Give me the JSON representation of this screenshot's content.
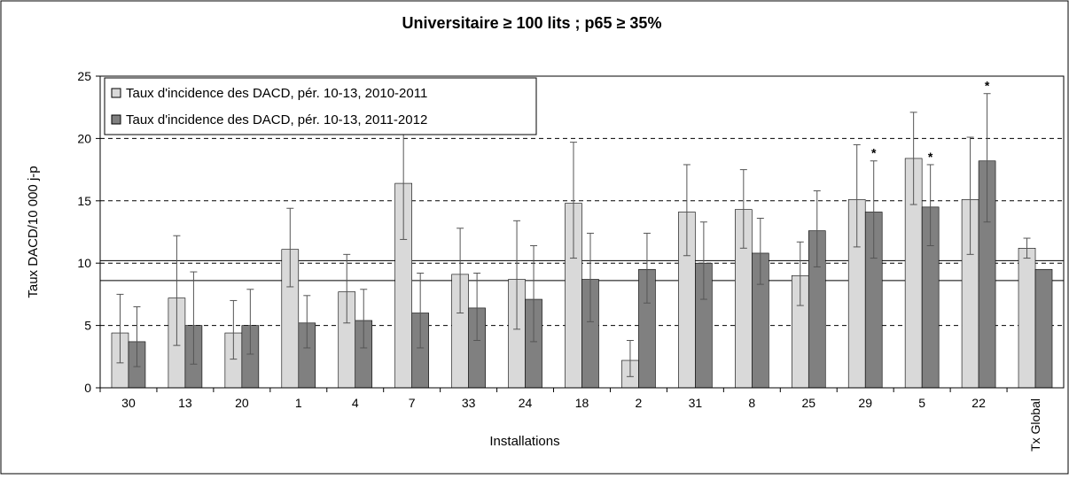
{
  "chart_data": {
    "type": "bar",
    "title": "Universitaire ≥ 100 lits ; p65 ≥ 35%",
    "y_label": "Taux DACD/10 000 j-p",
    "x_label": "Installations",
    "categories": [
      "30",
      "13",
      "20",
      "1",
      "4",
      "7",
      "33",
      "24",
      "18",
      "2",
      "31",
      "8",
      "25",
      "29",
      "5",
      "22",
      "Tx Global"
    ],
    "series": [
      {
        "name": "Taux d'incidence des DACD, pér. 10-13, 2010-2011",
        "color": "#d9d9d9",
        "values": [
          4.4,
          7.2,
          4.4,
          11.1,
          7.7,
          16.4,
          9.1,
          8.7,
          14.8,
          2.2,
          14.1,
          14.3,
          9.0,
          15.1,
          18.4,
          15.1,
          11.2
        ],
        "lower": [
          2.0,
          3.4,
          2.3,
          8.1,
          5.2,
          11.9,
          6.0,
          4.7,
          10.4,
          0.9,
          10.6,
          11.2,
          6.6,
          11.3,
          14.7,
          10.7,
          10.4
        ],
        "upper": [
          7.5,
          12.2,
          7.0,
          14.4,
          10.7,
          20.6,
          12.8,
          13.4,
          19.7,
          3.8,
          17.9,
          17.5,
          11.7,
          19.5,
          22.1,
          20.1,
          12.0
        ]
      },
      {
        "name": "Taux d'incidence des DACD, pér. 10-13, 2011-2012",
        "color": "#808080",
        "values": [
          3.7,
          5.0,
          5.0,
          5.2,
          5.4,
          6.0,
          6.4,
          7.1,
          8.7,
          9.5,
          10.0,
          10.8,
          12.6,
          14.1,
          14.5,
          18.2,
          9.5
        ],
        "lower": [
          1.7,
          1.9,
          2.7,
          3.2,
          3.2,
          3.2,
          3.8,
          3.7,
          5.3,
          6.8,
          7.1,
          8.3,
          9.7,
          10.4,
          11.4,
          13.3,
          null
        ],
        "upper": [
          6.5,
          9.3,
          7.9,
          7.4,
          7.9,
          9.2,
          9.2,
          11.4,
          12.4,
          12.4,
          13.3,
          13.6,
          15.8,
          18.2,
          17.9,
          23.6,
          null
        ],
        "annotations": [
          null,
          null,
          null,
          null,
          null,
          null,
          null,
          null,
          null,
          null,
          null,
          null,
          null,
          "*",
          "*",
          "*",
          null
        ]
      }
    ],
    "reference_lines": [
      8.6,
      10.2
    ],
    "ylim": [
      0,
      25
    ],
    "yticks": [
      0,
      5,
      10,
      15,
      20,
      25
    ],
    "grid": true,
    "legend": "top-left"
  }
}
